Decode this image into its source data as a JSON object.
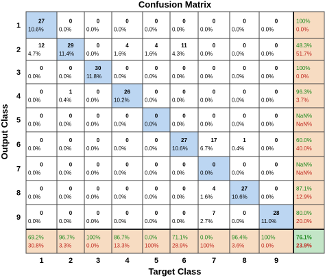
{
  "chart_data": {
    "type": "heatmap",
    "title": "Confusion Matrix",
    "xlabel": "Target Class",
    "ylabel": "Output Class",
    "x_tick_labels": [
      "1",
      "2",
      "3",
      "4",
      "5",
      "6",
      "7",
      "8",
      "9"
    ],
    "y_tick_labels": [
      "1",
      "2",
      "3",
      "4",
      "5",
      "6",
      "7",
      "8",
      "9"
    ],
    "matrix": [
      [
        {
          "c": "27",
          "p": "10.6%"
        },
        {
          "c": "0",
          "p": "0.0%"
        },
        {
          "c": "0",
          "p": "0.0%"
        },
        {
          "c": "0",
          "p": "0.0%"
        },
        {
          "c": "0",
          "p": "0.0%"
        },
        {
          "c": "0",
          "p": "0.0%"
        },
        {
          "c": "0",
          "p": "0.0%"
        },
        {
          "c": "0",
          "p": "0.0%"
        },
        {
          "c": "0",
          "p": "0.0%"
        }
      ],
      [
        {
          "c": "12",
          "p": "4.7%"
        },
        {
          "c": "29",
          "p": "11.4%"
        },
        {
          "c": "0",
          "p": "0.0%"
        },
        {
          "c": "4",
          "p": "1.6%"
        },
        {
          "c": "4",
          "p": "1.6%"
        },
        {
          "c": "11",
          "p": "4.3%"
        },
        {
          "c": "0",
          "p": "0.0%"
        },
        {
          "c": "0",
          "p": "0.0%"
        },
        {
          "c": "0",
          "p": "0.0%"
        }
      ],
      [
        {
          "c": "0",
          "p": "0.0%"
        },
        {
          "c": "0",
          "p": "0.0%"
        },
        {
          "c": "30",
          "p": "11.8%"
        },
        {
          "c": "0",
          "p": "0.0%"
        },
        {
          "c": "0",
          "p": "0.0%"
        },
        {
          "c": "0",
          "p": "0.0%"
        },
        {
          "c": "0",
          "p": "0.0%"
        },
        {
          "c": "0",
          "p": "0.0%"
        },
        {
          "c": "0",
          "p": "0.0%"
        }
      ],
      [
        {
          "c": "0",
          "p": "0.0%"
        },
        {
          "c": "1",
          "p": "0.4%"
        },
        {
          "c": "0",
          "p": "0.0%"
        },
        {
          "c": "26",
          "p": "10.2%"
        },
        {
          "c": "0",
          "p": "0.0%"
        },
        {
          "c": "0",
          "p": "0.0%"
        },
        {
          "c": "0",
          "p": "0.0%"
        },
        {
          "c": "0",
          "p": "0.0%"
        },
        {
          "c": "0",
          "p": "0.0%"
        }
      ],
      [
        {
          "c": "0",
          "p": "0.0%"
        },
        {
          "c": "0",
          "p": "0.0%"
        },
        {
          "c": "0",
          "p": "0.0%"
        },
        {
          "c": "0",
          "p": "0.0%"
        },
        {
          "c": "0",
          "p": "0.0%"
        },
        {
          "c": "0",
          "p": "0.0%"
        },
        {
          "c": "0",
          "p": "0.0%"
        },
        {
          "c": "0",
          "p": "0.0%"
        },
        {
          "c": "0",
          "p": "0.0%"
        }
      ],
      [
        {
          "c": "0",
          "p": "0.0%"
        },
        {
          "c": "0",
          "p": "0.0%"
        },
        {
          "c": "0",
          "p": "0.0%"
        },
        {
          "c": "0",
          "p": "0.0%"
        },
        {
          "c": "0",
          "p": "0.0%"
        },
        {
          "c": "27",
          "p": "10.6%"
        },
        {
          "c": "17",
          "p": "6.7%"
        },
        {
          "c": "1",
          "p": "0.4%"
        },
        {
          "c": "0",
          "p": "0.0%"
        }
      ],
      [
        {
          "c": "0",
          "p": "0.0%"
        },
        {
          "c": "0",
          "p": "0.0%"
        },
        {
          "c": "0",
          "p": "0.0%"
        },
        {
          "c": "0",
          "p": "0.0%"
        },
        {
          "c": "0",
          "p": "0.0%"
        },
        {
          "c": "0",
          "p": "0.0%"
        },
        {
          "c": "0",
          "p": "0.0%"
        },
        {
          "c": "0",
          "p": "0.0%"
        },
        {
          "c": "0",
          "p": "0.0%"
        }
      ],
      [
        {
          "c": "0",
          "p": "0.0%"
        },
        {
          "c": "0",
          "p": "0.0%"
        },
        {
          "c": "0",
          "p": "0.0%"
        },
        {
          "c": "0",
          "p": "0.0%"
        },
        {
          "c": "0",
          "p": "0.0%"
        },
        {
          "c": "0",
          "p": "0.0%"
        },
        {
          "c": "4",
          "p": "1.6%"
        },
        {
          "c": "27",
          "p": "10.6%"
        },
        {
          "c": "0",
          "p": "0.0%"
        }
      ],
      [
        {
          "c": "0",
          "p": "0.0%"
        },
        {
          "c": "0",
          "p": "0.0%"
        },
        {
          "c": "0",
          "p": "0.0%"
        },
        {
          "c": "0",
          "p": "0.0%"
        },
        {
          "c": "0",
          "p": "0.0%"
        },
        {
          "c": "0",
          "p": "0.0%"
        },
        {
          "c": "7",
          "p": "2.7%"
        },
        {
          "c": "0",
          "p": "0.0%"
        },
        {
          "c": "28",
          "p": "11.0%"
        }
      ]
    ],
    "row_summary": [
      [
        "100%",
        "0.0%"
      ],
      [
        "48.3%",
        "51.7%"
      ],
      [
        "100%",
        "0.0%"
      ],
      [
        "96.3%",
        "3.7%"
      ],
      [
        "NaN%",
        "NaN%"
      ],
      [
        "60.0%",
        "40.0%"
      ],
      [
        "NaN%",
        "NaN%"
      ],
      [
        "87.1%",
        "12.9%"
      ],
      [
        "80.0%",
        "20.0%"
      ]
    ],
    "col_summary": [
      [
        "69.2%",
        "30.8%"
      ],
      [
        "96.7%",
        "3.3%"
      ],
      [
        "100%",
        "0.0%"
      ],
      [
        "86.7%",
        "13.3%"
      ],
      [
        "0.0%",
        "100%"
      ],
      [
        "71.1%",
        "28.9%"
      ],
      [
        "0.0%",
        "100%"
      ],
      [
        "96.4%",
        "3.6%"
      ],
      [
        "100%",
        "0.0%"
      ]
    ],
    "overall": [
      "76.1%",
      "23.9%"
    ],
    "colors": {
      "diagonal": "#bcd6f2",
      "off_diagonal": "#ffffff",
      "summary": "#f7dcc2",
      "overall": "#c3e5c7",
      "correct_text": "#1e8a1e",
      "error_text": "#c0271e",
      "grid": "#444444"
    },
    "grid": true
  }
}
